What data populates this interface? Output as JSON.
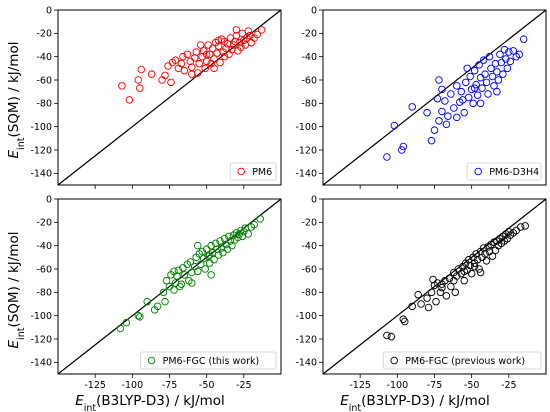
{
  "figure": {
    "ylabel_main": "E",
    "ylabel_sub": "int",
    "ylabel_rest": "(SQM) / kJ/mol",
    "xlabel_main": "E",
    "xlabel_sub": "int",
    "xlabel_rest": "(B3LYP-D3) / kJ/mol"
  },
  "chart_data": [
    {
      "type": "scatter",
      "legend": "PM6",
      "legend_position": "lower-right",
      "color": "#ff0000",
      "xlim": [
        -150,
        0
      ],
      "ylim": [
        -150,
        0
      ],
      "xticks": [
        "-125",
        "-100",
        "-75",
        "-50",
        "-25"
      ],
      "yticks": [
        "0",
        "-20",
        "-40",
        "-60",
        "-80",
        "-100",
        "-120",
        "-140"
      ],
      "diagonal": true,
      "points": [
        [
          -107,
          -65
        ],
        [
          -102,
          -77
        ],
        [
          -94,
          -51
        ],
        [
          -96,
          -60
        ],
        [
          -95,
          -67
        ],
        [
          -87,
          -55
        ],
        [
          -80,
          -60
        ],
        [
          -78,
          -56
        ],
        [
          -74,
          -62
        ],
        [
          -76,
          -48
        ],
        [
          -73,
          -45
        ],
        [
          -71,
          -43
        ],
        [
          -69,
          -50
        ],
        [
          -67,
          -46
        ],
        [
          -65,
          -52
        ],
        [
          -63,
          -38
        ],
        [
          -61,
          -44
        ],
        [
          -60,
          -49
        ],
        [
          -58,
          -41
        ],
        [
          -57,
          -36
        ],
        [
          -56,
          -54
        ],
        [
          -55,
          -46
        ],
        [
          -54,
          -30
        ],
        [
          -53,
          -40
        ],
        [
          -52,
          -35
        ],
        [
          -51,
          -50
        ],
        [
          -50,
          -44
        ],
        [
          -49,
          -30
        ],
        [
          -48,
          -38
        ],
        [
          -47,
          -46
        ],
        [
          -46,
          -33
        ],
        [
          -45,
          -42
        ],
        [
          -44,
          -28
        ],
        [
          -43,
          -37
        ],
        [
          -42,
          -31
        ],
        [
          -41,
          -45
        ],
        [
          -40,
          -25
        ],
        [
          -39,
          -36
        ],
        [
          -38,
          -40
        ],
        [
          -37,
          -33
        ],
        [
          -36,
          -29
        ],
        [
          -35,
          -38
        ],
        [
          -34,
          -24
        ],
        [
          -33,
          -34
        ],
        [
          -32,
          -30
        ],
        [
          -31,
          -27
        ],
        [
          -30,
          -22
        ],
        [
          -29,
          -35
        ],
        [
          -28,
          -28
        ],
        [
          -27,
          -32
        ],
        [
          -26,
          -20
        ],
        [
          -25,
          -26
        ],
        [
          -24,
          -30
        ],
        [
          -23,
          -24
        ],
        [
          -22,
          -18
        ],
        [
          -21,
          -22
        ],
        [
          -20,
          -28
        ],
        [
          -18,
          -24
        ],
        [
          -16,
          -21
        ],
        [
          -13,
          -17
        ],
        [
          -60,
          -55
        ],
        [
          -45,
          -50
        ],
        [
          -38,
          -27
        ],
        [
          -30,
          -17
        ],
        [
          -50,
          -38
        ],
        [
          -66,
          -40
        ],
        [
          -42,
          -26
        ]
      ]
    },
    {
      "type": "scatter",
      "legend": "PM6-D3H4",
      "legend_position": "lower-right",
      "color": "#0000ff",
      "xlim": [
        -150,
        0
      ],
      "ylim": [
        -150,
        0
      ],
      "xticks": [
        "-125",
        "-100",
        "-75",
        "-50",
        "-25"
      ],
      "yticks": [
        "0",
        "-20",
        "-40",
        "-60",
        "-80",
        "-100",
        "-120",
        "-140"
      ],
      "diagonal": true,
      "points": [
        [
          -107,
          -126
        ],
        [
          -97,
          -120
        ],
        [
          -96,
          -117
        ],
        [
          -102,
          -99
        ],
        [
          -90,
          -83
        ],
        [
          -77,
          -112
        ],
        [
          -75,
          -103
        ],
        [
          -72,
          -95
        ],
        [
          -70,
          -87
        ],
        [
          -68,
          -78
        ],
        [
          -73,
          -76
        ],
        [
          -66,
          -91
        ],
        [
          -64,
          -72
        ],
        [
          -62,
          -84
        ],
        [
          -60,
          -65
        ],
        [
          -58,
          -79
        ],
        [
          -57,
          -70
        ],
        [
          -55,
          -88
        ],
        [
          -54,
          -62
        ],
        [
          -52,
          -75
        ],
        [
          -51,
          -57
        ],
        [
          -50,
          -68
        ],
        [
          -49,
          -80
        ],
        [
          -48,
          -52
        ],
        [
          -47,
          -64
        ],
        [
          -46,
          -73
        ],
        [
          -45,
          -47
        ],
        [
          -44,
          -58
        ],
        [
          -43,
          -67
        ],
        [
          -42,
          -43
        ],
        [
          -41,
          -55
        ],
        [
          -40,
          -62
        ],
        [
          -39,
          -72
        ],
        [
          -38,
          -40
        ],
        [
          -37,
          -50
        ],
        [
          -36,
          -57
        ],
        [
          -35,
          -65
        ],
        [
          -34,
          -46
        ],
        [
          -33,
          -53
        ],
        [
          -32,
          -60
        ],
        [
          -31,
          -38
        ],
        [
          -30,
          -45
        ],
        [
          -29,
          -55
        ],
        [
          -28,
          -34
        ],
        [
          -27,
          -42
        ],
        [
          -26,
          -50
        ],
        [
          -25,
          -36
        ],
        [
          -24,
          -44
        ],
        [
          -22,
          -35
        ],
        [
          -20,
          -40
        ],
        [
          -18,
          -38
        ],
        [
          -15,
          -25
        ],
        [
          -72,
          -60
        ],
        [
          -60,
          -92
        ],
        [
          -44,
          -80
        ],
        [
          -33,
          -70
        ],
        [
          -53,
          -50
        ],
        [
          -80,
          -88
        ],
        [
          -70,
          -68
        ],
        [
          -56,
          -77
        ],
        [
          -67,
          -98
        ],
        [
          -48,
          -67
        ]
      ]
    },
    {
      "type": "scatter",
      "legend": "PM6-FGC (this work)",
      "legend_position": "lower-right",
      "color": "#008000",
      "xlim": [
        -150,
        0
      ],
      "ylim": [
        -150,
        0
      ],
      "xticks": [
        "-125",
        "-100",
        "-75",
        "-50",
        "-25"
      ],
      "yticks": [
        "0",
        "-20",
        "-40",
        "-60",
        "-80",
        "-100",
        "-120",
        "-140"
      ],
      "diagonal": true,
      "points": [
        [
          -108,
          -111
        ],
        [
          -104,
          -106
        ],
        [
          -96,
          -100
        ],
        [
          -95,
          -101
        ],
        [
          -90,
          -88
        ],
        [
          -83,
          -92
        ],
        [
          -78,
          -88
        ],
        [
          -79,
          -80
        ],
        [
          -77,
          -70
        ],
        [
          -75,
          -75
        ],
        [
          -74,
          -65
        ],
        [
          -72,
          -78
        ],
        [
          -71,
          -72
        ],
        [
          -70,
          -66
        ],
        [
          -69,
          -61
        ],
        [
          -68,
          -75
        ],
        [
          -66,
          -59
        ],
        [
          -65,
          -65
        ],
        [
          -63,
          -56
        ],
        [
          -62,
          -70
        ],
        [
          -61,
          -54
        ],
        [
          -60,
          -63
        ],
        [
          -58,
          -58
        ],
        [
          -57,
          -50
        ],
        [
          -56,
          -62
        ],
        [
          -55,
          -47
        ],
        [
          -54,
          -56
        ],
        [
          -53,
          -45
        ],
        [
          -52,
          -51
        ],
        [
          -51,
          -60
        ],
        [
          -50,
          -43
        ],
        [
          -49,
          -49
        ],
        [
          -48,
          -55
        ],
        [
          -47,
          -40
        ],
        [
          -46,
          -46
        ],
        [
          -45,
          -52
        ],
        [
          -44,
          -38
        ],
        [
          -43,
          -43
        ],
        [
          -42,
          -48
        ],
        [
          -41,
          -36
        ],
        [
          -40,
          -42
        ],
        [
          -39,
          -46
        ],
        [
          -38,
          -34
        ],
        [
          -37,
          -39
        ],
        [
          -36,
          -43
        ],
        [
          -35,
          -32
        ],
        [
          -34,
          -36
        ],
        [
          -33,
          -40
        ],
        [
          -32,
          -31
        ],
        [
          -31,
          -35
        ],
        [
          -30,
          -29
        ],
        [
          -29,
          -33
        ],
        [
          -28,
          -30
        ],
        [
          -27,
          -27
        ],
        [
          -26,
          -32
        ],
        [
          -25,
          -28
        ],
        [
          -24,
          -25
        ],
        [
          -22,
          -30
        ],
        [
          -20,
          -24
        ],
        [
          -18,
          -22
        ],
        [
          -14,
          -17
        ],
        [
          -85,
          -95
        ],
        [
          -60,
          -72
        ],
        [
          -47,
          -65
        ],
        [
          -67,
          -73
        ],
        [
          -72,
          -62
        ],
        [
          -56,
          -40
        ],
        [
          -48,
          -48
        ]
      ]
    },
    {
      "type": "scatter",
      "legend": "PM6-FGC (previous work)",
      "legend_position": "lower-right",
      "color": "#000000",
      "xlim": [
        -150,
        0
      ],
      "ylim": [
        -150,
        0
      ],
      "xticks": [
        "-125",
        "-100",
        "-75",
        "-50",
        "-25"
      ],
      "yticks": [
        "0",
        "-20",
        "-40",
        "-60",
        "-80",
        "-100",
        "-120",
        "-140"
      ],
      "diagonal": true,
      "points": [
        [
          -107,
          -117
        ],
        [
          -104,
          -118
        ],
        [
          -96,
          -103
        ],
        [
          -95,
          -105
        ],
        [
          -90,
          -92
        ],
        [
          -84,
          -90
        ],
        [
          -79,
          -93
        ],
        [
          -80,
          -85
        ],
        [
          -77,
          -80
        ],
        [
          -75,
          -74
        ],
        [
          -74,
          -88
        ],
        [
          -73,
          -72
        ],
        [
          -71,
          -80
        ],
        [
          -70,
          -76
        ],
        [
          -68,
          -70
        ],
        [
          -67,
          -83
        ],
        [
          -65,
          -68
        ],
        [
          -64,
          -75
        ],
        [
          -62,
          -63
        ],
        [
          -61,
          -80
        ],
        [
          -60,
          -66
        ],
        [
          -59,
          -60
        ],
        [
          -57,
          -64
        ],
        [
          -56,
          -58
        ],
        [
          -55,
          -70
        ],
        [
          -54,
          -55
        ],
        [
          -53,
          -61
        ],
        [
          -52,
          -52
        ],
        [
          -51,
          -57
        ],
        [
          -50,
          -64
        ],
        [
          -49,
          -50
        ],
        [
          -48,
          -55
        ],
        [
          -47,
          -47
        ],
        [
          -46,
          -52
        ],
        [
          -45,
          -60
        ],
        [
          -44,
          -45
        ],
        [
          -43,
          -50
        ],
        [
          -42,
          -42
        ],
        [
          -41,
          -47
        ],
        [
          -40,
          -53
        ],
        [
          -39,
          -41
        ],
        [
          -38,
          -45
        ],
        [
          -37,
          -39
        ],
        [
          -36,
          -49
        ],
        [
          -35,
          -37
        ],
        [
          -34,
          -44
        ],
        [
          -33,
          -36
        ],
        [
          -32,
          -40
        ],
        [
          -31,
          -34
        ],
        [
          -30,
          -38
        ],
        [
          -29,
          -32
        ],
        [
          -28,
          -36
        ],
        [
          -27,
          -30
        ],
        [
          -26,
          -34
        ],
        [
          -25,
          -28
        ],
        [
          -24,
          -31
        ],
        [
          -22,
          -29
        ],
        [
          -20,
          -27
        ],
        [
          -17,
          -24
        ],
        [
          -14,
          -23
        ],
        [
          -86,
          -82
        ],
        [
          -62,
          -70
        ],
        [
          -44,
          -63
        ],
        [
          -70,
          -73
        ],
        [
          -76,
          -69
        ],
        [
          -55,
          -62
        ],
        [
          -48,
          -58
        ]
      ]
    }
  ]
}
